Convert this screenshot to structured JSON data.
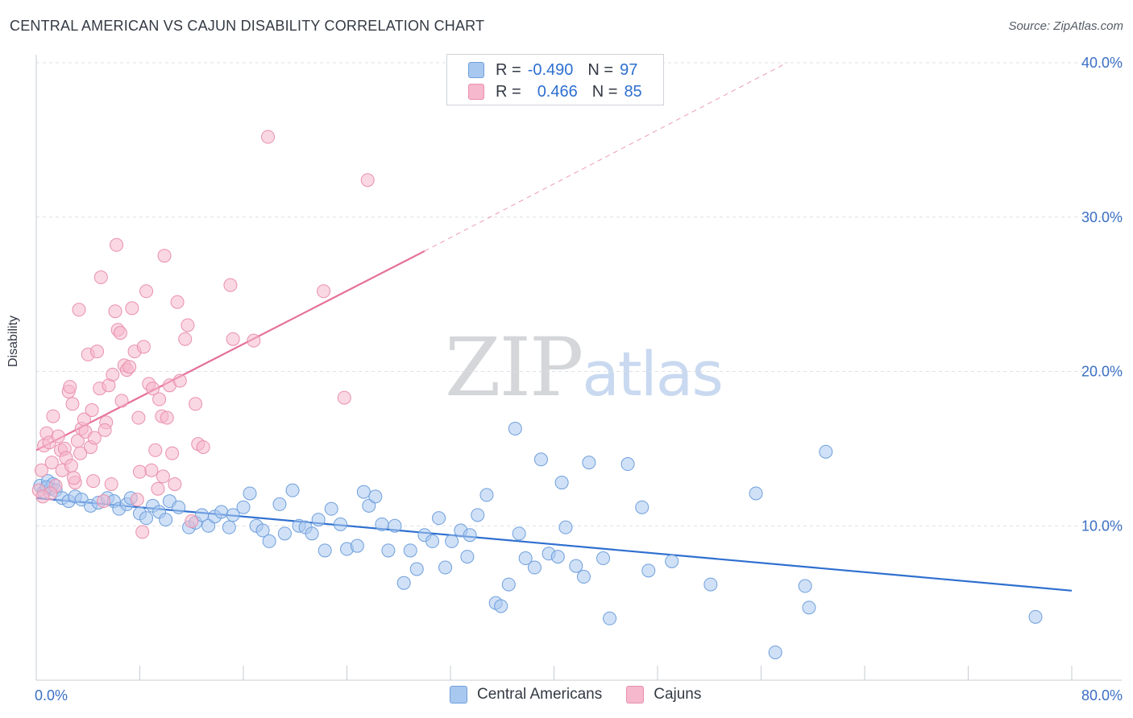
{
  "title": "CENTRAL AMERICAN VS CAJUN DISABILITY CORRELATION CHART",
  "source": "Source: ZipAtlas.com",
  "watermark": {
    "zip": "ZIP",
    "atlas": "atlas"
  },
  "legend": {
    "rows": [
      {
        "r_label": "R =",
        "r_value": "-0.490",
        "n_label": "N =",
        "n_value": "97",
        "color": "#a9c8f0"
      },
      {
        "r_label": "R =",
        "r_value": "0.466",
        "n_label": "N =",
        "n_value": "85",
        "color": "#f5b8cc"
      }
    ]
  },
  "chart_data": {
    "type": "scatter",
    "xlabel": "",
    "ylabel": "Disability",
    "xlim": [
      0,
      80
    ],
    "ylim": [
      0,
      40
    ],
    "x_tick_labels": [
      "0.0%",
      "80.0%"
    ],
    "y_ticks": [
      10,
      20,
      30,
      40
    ],
    "y_tick_labels": [
      "10.0%",
      "20.0%",
      "30.0%",
      "40.0%"
    ],
    "grid": "horizontal dashed",
    "legend_position": "top-center",
    "series": [
      {
        "name": "Central Americans",
        "color": "#6f9fdc",
        "fill": "#a9c8f0",
        "trend": {
          "x0": 0,
          "y0": 11.8,
          "x1": 80,
          "y1": 5.8,
          "color": "#2e6fd0"
        },
        "points": [
          [
            0.3,
            12.6
          ],
          [
            0.6,
            12.2
          ],
          [
            0.9,
            12.9
          ],
          [
            1.1,
            12.4
          ],
          [
            1.3,
            12.7
          ],
          [
            1.5,
            12.3
          ],
          [
            2.0,
            11.8
          ],
          [
            2.5,
            11.6
          ],
          [
            3.0,
            11.9
          ],
          [
            3.5,
            11.7
          ],
          [
            4.2,
            11.3
          ],
          [
            4.8,
            11.5
          ],
          [
            5.5,
            11.8
          ],
          [
            6.0,
            11.6
          ],
          [
            6.4,
            11.1
          ],
          [
            7.0,
            11.4
          ],
          [
            7.3,
            11.8
          ],
          [
            8.0,
            10.8
          ],
          [
            8.5,
            10.5
          ],
          [
            9.0,
            11.3
          ],
          [
            9.5,
            10.9
          ],
          [
            10.0,
            10.4
          ],
          [
            10.3,
            11.6
          ],
          [
            11.0,
            11.2
          ],
          [
            11.8,
            9.9
          ],
          [
            12.3,
            10.2
          ],
          [
            12.8,
            10.7
          ],
          [
            13.3,
            10.0
          ],
          [
            13.8,
            10.6
          ],
          [
            14.3,
            10.9
          ],
          [
            14.9,
            9.9
          ],
          [
            15.2,
            10.7
          ],
          [
            16.0,
            11.2
          ],
          [
            16.5,
            12.1
          ],
          [
            17.0,
            10.0
          ],
          [
            17.5,
            9.7
          ],
          [
            18.0,
            9.0
          ],
          [
            18.8,
            11.4
          ],
          [
            19.2,
            9.5
          ],
          [
            19.8,
            12.3
          ],
          [
            20.3,
            10.0
          ],
          [
            20.8,
            9.9
          ],
          [
            21.3,
            9.5
          ],
          [
            21.8,
            10.4
          ],
          [
            22.3,
            8.4
          ],
          [
            22.8,
            11.1
          ],
          [
            23.5,
            10.1
          ],
          [
            24.0,
            8.5
          ],
          [
            24.8,
            8.7
          ],
          [
            25.3,
            12.2
          ],
          [
            25.7,
            11.3
          ],
          [
            26.2,
            11.9
          ],
          [
            26.7,
            10.1
          ],
          [
            27.2,
            8.4
          ],
          [
            27.7,
            10.0
          ],
          [
            28.4,
            6.3
          ],
          [
            28.9,
            8.4
          ],
          [
            29.4,
            7.2
          ],
          [
            30.0,
            9.4
          ],
          [
            30.6,
            9.0
          ],
          [
            31.1,
            10.5
          ],
          [
            31.6,
            7.3
          ],
          [
            32.1,
            9.0
          ],
          [
            32.8,
            9.7
          ],
          [
            33.3,
            8.0
          ],
          [
            33.5,
            9.4
          ],
          [
            34.1,
            10.7
          ],
          [
            34.8,
            12.0
          ],
          [
            35.5,
            5.0
          ],
          [
            35.9,
            4.8
          ],
          [
            36.5,
            6.2
          ],
          [
            37.0,
            16.3
          ],
          [
            37.3,
            9.5
          ],
          [
            37.8,
            7.9
          ],
          [
            38.5,
            7.3
          ],
          [
            39.0,
            14.3
          ],
          [
            39.6,
            8.2
          ],
          [
            40.3,
            8.0
          ],
          [
            40.6,
            12.8
          ],
          [
            40.9,
            9.9
          ],
          [
            41.7,
            7.4
          ],
          [
            42.3,
            6.7
          ],
          [
            42.7,
            14.1
          ],
          [
            43.8,
            7.9
          ],
          [
            44.3,
            4.0
          ],
          [
            45.7,
            14.0
          ],
          [
            46.8,
            11.2
          ],
          [
            47.3,
            7.1
          ],
          [
            49.1,
            7.7
          ],
          [
            52.1,
            6.2
          ],
          [
            55.6,
            12.1
          ],
          [
            57.1,
            1.8
          ],
          [
            59.4,
            6.1
          ],
          [
            59.7,
            4.7
          ],
          [
            61.0,
            14.8
          ],
          [
            77.2,
            4.1
          ],
          [
            0.8,
            12.5
          ]
        ]
      },
      {
        "name": "Cajuns",
        "color": "#e990ad",
        "fill": "#f5b8cc",
        "trend": {
          "x0": 0,
          "y0": 14.9,
          "x1": 30,
          "y1": 27.8,
          "color": "#e5709a"
        },
        "trend_extension": {
          "x0": 30,
          "y0": 27.8,
          "x1": 58,
          "y1": 40.0
        },
        "points": [
          [
            0.2,
            12.3
          ],
          [
            0.4,
            13.6
          ],
          [
            0.6,
            15.2
          ],
          [
            0.8,
            16.0
          ],
          [
            1.0,
            15.4
          ],
          [
            1.2,
            14.1
          ],
          [
            1.3,
            17.1
          ],
          [
            1.5,
            12.6
          ],
          [
            1.7,
            15.8
          ],
          [
            1.9,
            14.9
          ],
          [
            2.0,
            13.6
          ],
          [
            2.2,
            15.0
          ],
          [
            2.3,
            14.4
          ],
          [
            2.5,
            18.7
          ],
          [
            2.7,
            13.9
          ],
          [
            2.8,
            17.9
          ],
          [
            3.0,
            12.8
          ],
          [
            3.2,
            15.5
          ],
          [
            3.3,
            24.0
          ],
          [
            3.5,
            16.3
          ],
          [
            3.7,
            16.9
          ],
          [
            3.8,
            16.1
          ],
          [
            4.0,
            21.1
          ],
          [
            4.2,
            15.1
          ],
          [
            4.4,
            12.9
          ],
          [
            4.5,
            15.7
          ],
          [
            4.7,
            21.3
          ],
          [
            4.9,
            18.9
          ],
          [
            5.0,
            26.1
          ],
          [
            5.2,
            11.6
          ],
          [
            5.4,
            16.7
          ],
          [
            5.6,
            19.1
          ],
          [
            5.8,
            12.7
          ],
          [
            5.9,
            19.8
          ],
          [
            6.1,
            23.9
          ],
          [
            6.3,
            22.7
          ],
          [
            6.5,
            22.5
          ],
          [
            6.6,
            18.1
          ],
          [
            6.8,
            20.4
          ],
          [
            7.0,
            20.1
          ],
          [
            7.2,
            20.3
          ],
          [
            7.4,
            24.1
          ],
          [
            7.6,
            21.3
          ],
          [
            7.8,
            11.7
          ],
          [
            8.0,
            13.5
          ],
          [
            8.2,
            9.6
          ],
          [
            8.3,
            21.6
          ],
          [
            8.5,
            25.2
          ],
          [
            8.7,
            19.2
          ],
          [
            8.9,
            13.6
          ],
          [
            9.0,
            18.9
          ],
          [
            9.2,
            14.9
          ],
          [
            9.4,
            12.4
          ],
          [
            9.5,
            18.2
          ],
          [
            9.7,
            17.1
          ],
          [
            9.9,
            27.5
          ],
          [
            10.1,
            17.0
          ],
          [
            10.3,
            19.1
          ],
          [
            10.5,
            14.7
          ],
          [
            10.7,
            12.7
          ],
          [
            10.9,
            24.5
          ],
          [
            11.1,
            19.4
          ],
          [
            11.5,
            22.1
          ],
          [
            11.7,
            23.0
          ],
          [
            12.0,
            10.3
          ],
          [
            12.3,
            17.9
          ],
          [
            12.5,
            15.3
          ],
          [
            12.9,
            15.1
          ],
          [
            15.0,
            25.6
          ],
          [
            15.2,
            22.1
          ],
          [
            16.8,
            22.0
          ],
          [
            17.9,
            35.2
          ],
          [
            22.2,
            25.2
          ],
          [
            23.8,
            18.3
          ],
          [
            25.6,
            32.4
          ],
          [
            6.2,
            28.2
          ],
          [
            2.6,
            19.0
          ],
          [
            4.3,
            17.5
          ],
          [
            7.9,
            17.0
          ],
          [
            1.1,
            12.1
          ],
          [
            3.4,
            14.7
          ],
          [
            9.8,
            13.2
          ],
          [
            5.3,
            16.2
          ],
          [
            0.5,
            11.9
          ],
          [
            2.9,
            13.1
          ]
        ]
      }
    ]
  }
}
